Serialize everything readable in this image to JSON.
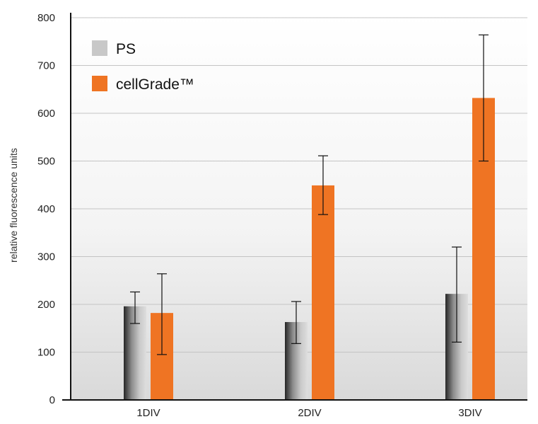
{
  "chart_data": {
    "type": "bar",
    "ylabel": "relative fluorescence units",
    "xlabel": "",
    "ylim": [
      0,
      800
    ],
    "yticks": [
      0,
      100,
      200,
      300,
      400,
      500,
      600,
      700,
      800
    ],
    "grid": true,
    "legend_position": "top-left",
    "categories": [
      "1DIV",
      "2DIV",
      "3DIV"
    ],
    "series": [
      {
        "name": "PS",
        "color": "#c8c8c8",
        "values": [
          196,
          163,
          222
        ],
        "error_low": [
          160,
          118,
          121
        ],
        "error_high": [
          226,
          206,
          320
        ]
      },
      {
        "name": "cellGrade™",
        "color": "#ef7423",
        "values": [
          182,
          449,
          632
        ],
        "error_low": [
          95,
          388,
          500
        ],
        "error_high": [
          264,
          511,
          764
        ]
      }
    ]
  }
}
